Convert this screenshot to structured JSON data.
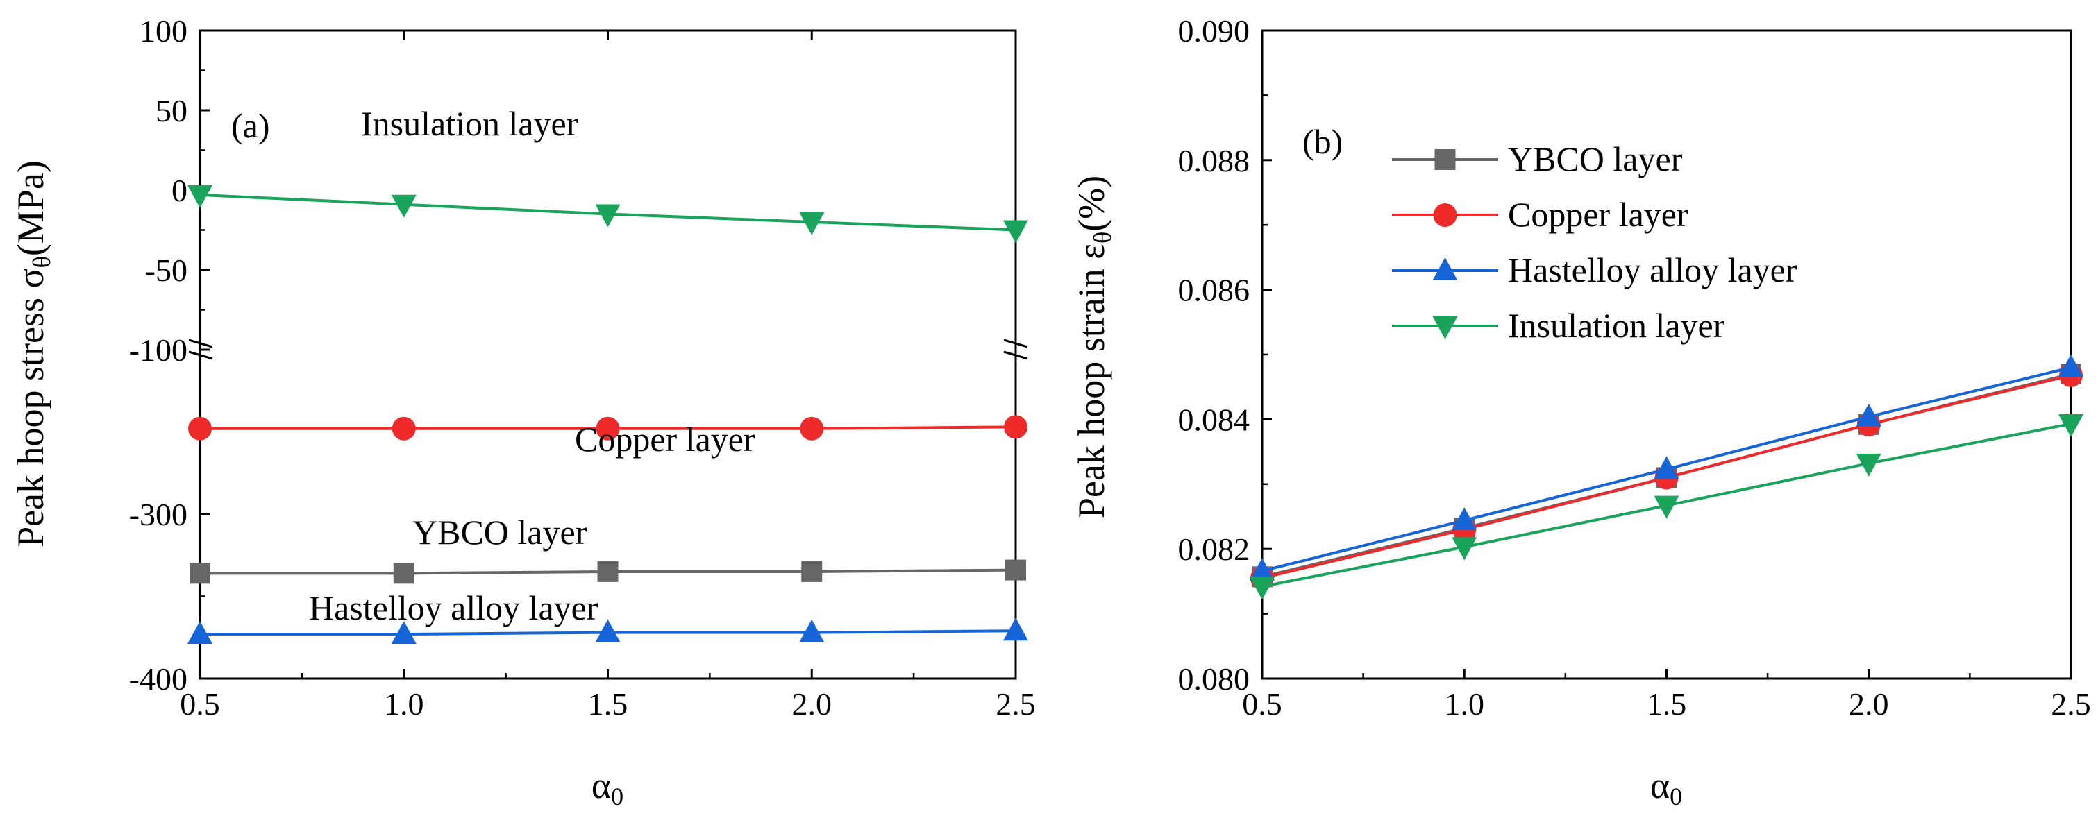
{
  "chart_data": [
    {
      "type": "line",
      "panel_label": "(a)",
      "xlabel_base": "α",
      "xlabel_sub": "0",
      "ylabel_base": "Peak hoop stress σ",
      "ylabel_sub": "θ",
      "ylabel_unit": "(MPa)",
      "x": [
        0.5,
        1.0,
        1.5,
        2.0,
        2.5
      ],
      "x_ticks": [
        "0.5",
        "1.0",
        "1.5",
        "2.0",
        "2.5"
      ],
      "xlim": [
        0.5,
        2.5
      ],
      "broken_y_axis": true,
      "upper_ylim": [
        -100,
        100
      ],
      "upper_ticks": [
        "100",
        "50",
        "0",
        "-50",
        "-100"
      ],
      "lower_ylim": [
        -400,
        -200
      ],
      "lower_ticks": [
        "-300",
        "-400"
      ],
      "series": [
        {
          "label": "Insulation layer",
          "color": "#1aa35a",
          "marker": "triangle-down",
          "values": [
            -3,
            -9,
            -15,
            -20,
            -25
          ]
        },
        {
          "label": "Copper layer",
          "color": "#ee2a2a",
          "marker": "circle",
          "values": [
            -248,
            -248,
            -248,
            -248,
            -247
          ]
        },
        {
          "label": "YBCO layer",
          "color": "#666666",
          "marker": "square",
          "values": [
            -336,
            -336,
            -335,
            -335,
            -334
          ]
        },
        {
          "label": "Hastelloy alloy layer",
          "color": "#1565d8",
          "marker": "triangle-up",
          "values": [
            -373,
            -373,
            -372,
            -372,
            -371
          ]
        }
      ]
    },
    {
      "type": "line",
      "panel_label": "(b)",
      "xlabel_base": "α",
      "xlabel_sub": "0",
      "ylabel_base": "Peak hoop strain ε",
      "ylabel_sub": "θ",
      "ylabel_unit": "(%)",
      "x": [
        0.5,
        1.0,
        1.5,
        2.0,
        2.5
      ],
      "x_ticks": [
        "0.5",
        "1.0",
        "1.5",
        "2.0",
        "2.5"
      ],
      "xlim": [
        0.5,
        2.5
      ],
      "ylim": [
        0.08,
        0.09
      ],
      "y_ticks": [
        "0.080",
        "0.082",
        "0.084",
        "0.086",
        "0.088",
        "0.090"
      ],
      "legend_position": "top-left",
      "series": [
        {
          "name": "YBCO layer",
          "color": "#666666",
          "marker": "square",
          "values": [
            0.08157,
            0.08232,
            0.0831,
            0.08392,
            0.0847
          ]
        },
        {
          "name": "Copper layer",
          "color": "#ee2a2a",
          "marker": "circle",
          "values": [
            0.08155,
            0.0823,
            0.0831,
            0.08392,
            0.08468
          ]
        },
        {
          "name": "Hastelloy alloy layer",
          "color": "#1565d8",
          "marker": "triangle-up",
          "values": [
            0.08166,
            0.08244,
            0.08323,
            0.08404,
            0.0848
          ]
        },
        {
          "name": "Insulation layer",
          "color": "#1aa35a",
          "marker": "triangle-down",
          "values": [
            0.08142,
            0.08203,
            0.08267,
            0.08332,
            0.08393
          ]
        }
      ]
    }
  ]
}
